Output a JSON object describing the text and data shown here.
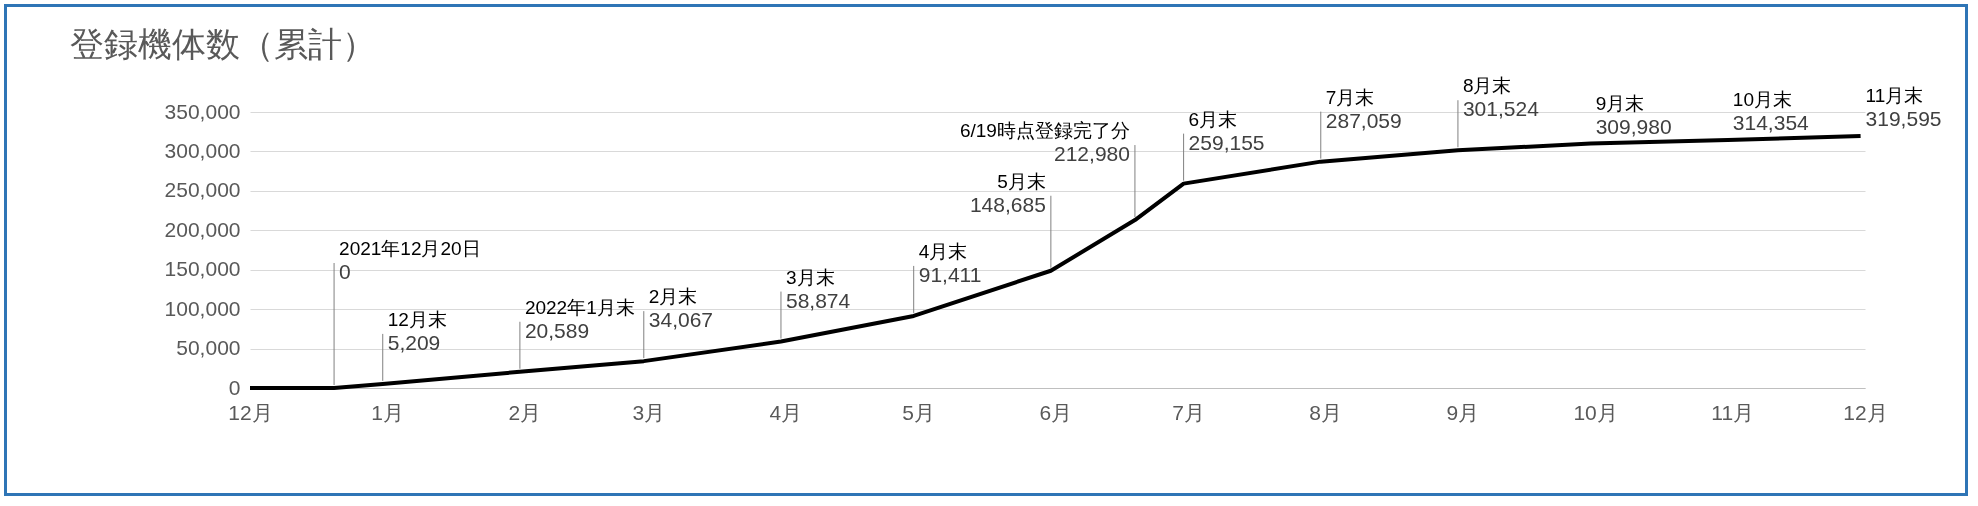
{
  "chart_data": {
    "type": "line",
    "title": "登録機体数（累計）",
    "x": [
      "2021-12-01",
      "2021-12-20",
      "2021-12-31",
      "2022-01-31",
      "2022-02-28",
      "2022-03-31",
      "2022-04-30",
      "2022-05-31",
      "2022-06-19",
      "2022-06-30",
      "2022-07-31",
      "2022-08-31",
      "2022-09-30",
      "2022-10-31",
      "2022-11-30"
    ],
    "series": [
      {
        "color": "#000000",
        "values": [
          0,
          0,
          5209,
          20589,
          34067,
          58874,
          91411,
          148685,
          212980,
          259155,
          287059,
          301524,
          309980,
          314354,
          319595
        ],
        "value_labels": [
          null,
          "0",
          "5,209",
          "20,589",
          "34,067",
          "58,874",
          "91,411",
          "148,685",
          "212,980",
          "259,155",
          "287,059",
          "301,524",
          "309,980",
          "314,354",
          "319,595"
        ]
      }
    ],
    "annotations": [
      {
        "text": "2021年12月20日",
        "x": "2021-12-20",
        "y": 0
      },
      {
        "text": "12月末",
        "x": "2021-12-31",
        "y": 5209
      },
      {
        "text": "2022年1月末",
        "x": "2022-01-31",
        "y": 20589
      },
      {
        "text": "2月末",
        "x": "2022-02-28",
        "y": 34067
      },
      {
        "text": "3月末",
        "x": "2022-03-31",
        "y": 58874
      },
      {
        "text": "4月末",
        "x": "2022-04-30",
        "y": 91411
      },
      {
        "text": "5月末",
        "x": "2022-05-31",
        "y": 148685
      },
      {
        "text": "6/19時点登録完了分",
        "x": "2022-06-19",
        "y": 212980
      },
      {
        "text": "6月末",
        "x": "2022-06-30",
        "y": 259155
      },
      {
        "text": "7月末",
        "x": "2022-07-31",
        "y": 287059
      },
      {
        "text": "8月末",
        "x": "2022-08-31",
        "y": 301524
      },
      {
        "text": "9月末",
        "x": "2022-09-30",
        "y": 309980
      },
      {
        "text": "10月末",
        "x": "2022-10-31",
        "y": 314354
      },
      {
        "text": "11月末",
        "x": "2022-11-30",
        "y": 319595
      }
    ],
    "xlim": [
      "2021-12-01",
      "2022-12-01"
    ],
    "xticks": [
      {
        "value": "2021-12-01",
        "label": "12月"
      },
      {
        "value": "2022-01-01",
        "label": "1月"
      },
      {
        "value": "2022-02-01",
        "label": "2月"
      },
      {
        "value": "2022-03-01",
        "label": "3月"
      },
      {
        "value": "2022-04-01",
        "label": "4月"
      },
      {
        "value": "2022-05-01",
        "label": "5月"
      },
      {
        "value": "2022-06-01",
        "label": "6月"
      },
      {
        "value": "2022-07-01",
        "label": "7月"
      },
      {
        "value": "2022-08-01",
        "label": "8月"
      },
      {
        "value": "2022-09-01",
        "label": "9月"
      },
      {
        "value": "2022-10-01",
        "label": "10月"
      },
      {
        "value": "2022-11-01",
        "label": "11月"
      },
      {
        "value": "2022-12-01",
        "label": "12月"
      }
    ],
    "ylim": [
      0,
      350000
    ],
    "yticks": [
      {
        "value": 0,
        "label": "0"
      },
      {
        "value": 50000,
        "label": "50,000"
      },
      {
        "value": 100000,
        "label": "100,000"
      },
      {
        "value": 150000,
        "label": "150,000"
      },
      {
        "value": 200000,
        "label": "200,000"
      },
      {
        "value": 250000,
        "label": "250,000"
      },
      {
        "value": 300000,
        "label": "300,000"
      },
      {
        "value": 350000,
        "label": "350,000"
      }
    ],
    "grid": "y",
    "line_style": "solid"
  }
}
